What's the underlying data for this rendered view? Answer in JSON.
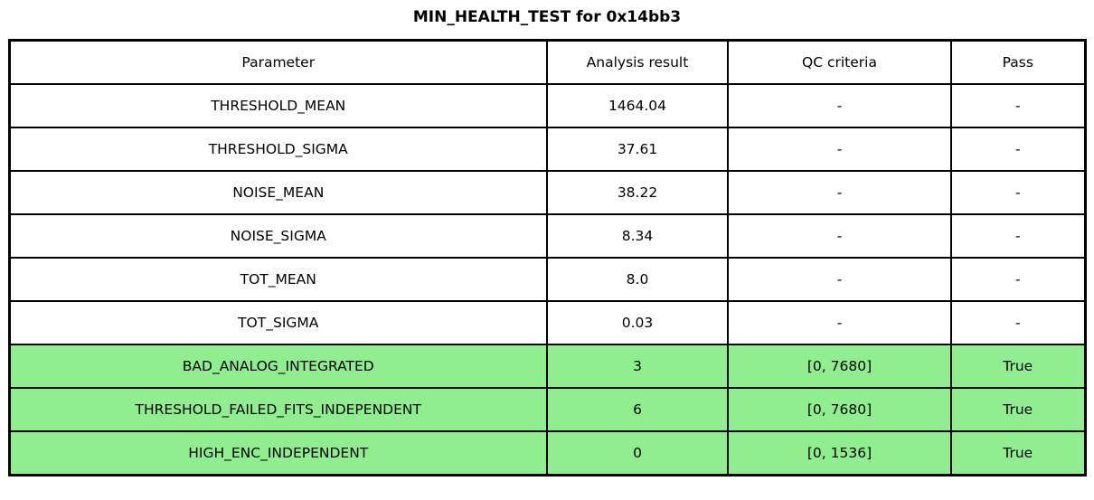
{
  "title": "MIN_HEALTH_TEST for 0x14bb3",
  "colors": {
    "pass_row_background": "#90ee90",
    "border": "#000000",
    "background": "#ffffff",
    "text": "#000000"
  },
  "table": {
    "columns": [
      "Parameter",
      "Analysis result",
      "QC criteria",
      "Pass"
    ],
    "rows": [
      {
        "parameter": "THRESHOLD_MEAN",
        "analysis_result": "1464.04",
        "qc_criteria": "-",
        "pass": "-",
        "highlight": false
      },
      {
        "parameter": "THRESHOLD_SIGMA",
        "analysis_result": "37.61",
        "qc_criteria": "-",
        "pass": "-",
        "highlight": false
      },
      {
        "parameter": "NOISE_MEAN",
        "analysis_result": "38.22",
        "qc_criteria": "-",
        "pass": "-",
        "highlight": false
      },
      {
        "parameter": "NOISE_SIGMA",
        "analysis_result": "8.34",
        "qc_criteria": "-",
        "pass": "-",
        "highlight": false
      },
      {
        "parameter": "TOT_MEAN",
        "analysis_result": "8.0",
        "qc_criteria": "-",
        "pass": "-",
        "highlight": false
      },
      {
        "parameter": "TOT_SIGMA",
        "analysis_result": "0.03",
        "qc_criteria": "-",
        "pass": "-",
        "highlight": false
      },
      {
        "parameter": "BAD_ANALOG_INTEGRATED",
        "analysis_result": "3",
        "qc_criteria": "[0, 7680]",
        "pass": "True",
        "highlight": true
      },
      {
        "parameter": "THRESHOLD_FAILED_FITS_INDEPENDENT",
        "analysis_result": "6",
        "qc_criteria": "[0, 7680]",
        "pass": "True",
        "highlight": true
      },
      {
        "parameter": "HIGH_ENC_INDEPENDENT",
        "analysis_result": "0",
        "qc_criteria": "[0, 1536]",
        "pass": "True",
        "highlight": true
      }
    ]
  }
}
